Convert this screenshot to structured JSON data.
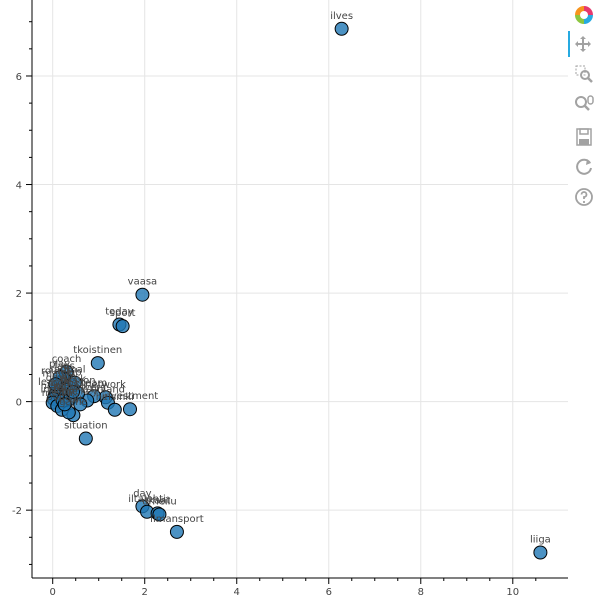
{
  "toolbar": {
    "tools": [
      {
        "name": "bokeh-logo-icon",
        "label": "Bokeh"
      },
      {
        "name": "pan-icon",
        "label": "Pan",
        "active": true
      },
      {
        "name": "box-zoom-icon",
        "label": "Box Zoom"
      },
      {
        "name": "wheel-zoom-icon",
        "label": "Wheel Zoom"
      },
      {
        "name": "save-icon",
        "label": "Save"
      },
      {
        "name": "reset-icon",
        "label": "Reset"
      },
      {
        "name": "help-icon",
        "label": "Help"
      }
    ]
  },
  "chart_data": {
    "type": "scatter",
    "title": "",
    "xlabel": "",
    "ylabel": "",
    "xlim": [
      -0.45,
      11.2
    ],
    "ylim": [
      -3.25,
      7.4
    ],
    "xticks": [
      0,
      2,
      4,
      6,
      8,
      10
    ],
    "yticks": [
      -2,
      0,
      2,
      4,
      6
    ],
    "grid": true,
    "marker_color": "#1f77b4",
    "points": [
      {
        "label": "ilves",
        "x": 6.28,
        "y": 6.87
      },
      {
        "label": "vaasa",
        "x": 1.95,
        "y": 1.97
      },
      {
        "label": "today",
        "x": 1.45,
        "y": 1.42
      },
      {
        "label": "sport",
        "x": 1.52,
        "y": 1.39
      },
      {
        "label": "tkoistinen",
        "x": 0.98,
        "y": 0.71
      },
      {
        "label": "investment",
        "x": 1.68,
        "y": -0.14
      },
      {
        "label": "situation",
        "x": 0.72,
        "y": -0.68
      },
      {
        "label": "day",
        "x": 1.95,
        "y": -1.93
      },
      {
        "label": "iltalehti",
        "x": 2.05,
        "y": -2.03
      },
      {
        "label": "tkaat",
        "x": 2.28,
        "y": -2.06
      },
      {
        "label": "urheilu",
        "x": 2.32,
        "y": -2.08
      },
      {
        "label": "ilmansport",
        "x": 2.7,
        "y": -2.4
      },
      {
        "label": "liiga",
        "x": 10.6,
        "y": -2.78
      },
      {
        "label": "network",
        "x": 1.15,
        "y": 0.08
      },
      {
        "label": "finland",
        "x": 1.2,
        "y": -0.02
      },
      {
        "label": "helsinki",
        "x": 1.35,
        "y": -0.15
      },
      {
        "label": "team",
        "x": 0.9,
        "y": 0.1
      },
      {
        "label": "players",
        "x": 0.75,
        "y": 0.02
      },
      {
        "label": "game",
        "x": 0.45,
        "y": -0.25
      },
      {
        "label": "season",
        "x": 0.55,
        "y": 0.15
      },
      {
        "label": "coach",
        "x": 0.3,
        "y": 0.55
      },
      {
        "label": "fans",
        "x": 0.25,
        "y": 0.42
      },
      {
        "label": "rank",
        "x": 0.18,
        "y": 0.35
      },
      {
        "label": "match",
        "x": 0.12,
        "y": 0.28
      },
      {
        "label": "goal",
        "x": 0.08,
        "y": 0.2
      },
      {
        "label": "league",
        "x": 0.05,
        "y": 0.12
      },
      {
        "label": "news",
        "x": 0.02,
        "y": 0.05
      },
      {
        "label": "india",
        "x": 0.0,
        "y": -0.02
      },
      {
        "label": "media",
        "x": 0.1,
        "y": -0.08
      },
      {
        "label": "points",
        "x": 0.2,
        "y": -0.15
      },
      {
        "label": "result",
        "x": 0.35,
        "y": -0.2
      },
      {
        "label": "club",
        "x": 0.4,
        "y": 0.3
      },
      {
        "label": "win",
        "x": 0.32,
        "y": 0.22
      },
      {
        "label": "home",
        "x": 0.28,
        "y": 0.1
      },
      {
        "label": "away",
        "x": 0.22,
        "y": 0.02
      },
      {
        "label": "period",
        "x": 0.38,
        "y": 0.05
      },
      {
        "label": "final",
        "x": 0.48,
        "y": 0.35
      },
      {
        "label": "play",
        "x": 0.15,
        "y": 0.45
      },
      {
        "label": "round",
        "x": 0.06,
        "y": 0.32
      },
      {
        "label": "hockey",
        "x": 0.6,
        "y": -0.05
      },
      {
        "label": "score",
        "x": 0.26,
        "y": -0.05
      },
      {
        "label": "week",
        "x": 0.44,
        "y": 0.18
      }
    ]
  }
}
